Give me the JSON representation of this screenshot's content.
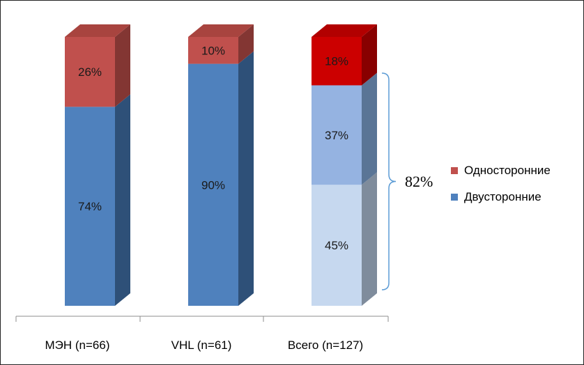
{
  "chart_data": {
    "type": "bar",
    "stacked": true,
    "three_d": true,
    "categories": [
      "МЭН (n=66)",
      "VHL (n=61)",
      "Всего (n=127)"
    ],
    "series": [
      {
        "name": "Двусторонние",
        "values": [
          74,
          90,
          82
        ],
        "color": "#4F81BD"
      },
      {
        "name": "Односторонние",
        "values": [
          26,
          10,
          18
        ],
        "color": "#C0504D"
      }
    ],
    "stacks": [
      [
        {
          "label": "74%",
          "value": 74,
          "color": "#4F81BD",
          "side": "#2E5078",
          "top": "#5B8DC6"
        },
        {
          "label": "26%",
          "value": 26,
          "color": "#C0504D",
          "side": "#833633",
          "top": "#A8443F"
        }
      ],
      [
        {
          "label": "90%",
          "value": 90,
          "color": "#4F81BD",
          "side": "#2E5078",
          "top": "#5B8DC6"
        },
        {
          "label": "10%",
          "value": 10,
          "color": "#C0504D",
          "side": "#833633",
          "top": "#A8443F"
        }
      ],
      [
        {
          "label": "45%",
          "value": 45,
          "color": "#C6D8EF",
          "side": "#7F8C9C",
          "top": "#C6D8EF"
        },
        {
          "label": "37%",
          "value": 37,
          "color": "#95B3E1",
          "side": "#5A7596",
          "top": "#95B3E1"
        },
        {
          "label": "18%",
          "value": 18,
          "color": "#CC0000",
          "side": "#880000",
          "top": "#B20000"
        }
      ]
    ],
    "annotation": {
      "label": "82%",
      "segments_grouped": [
        "45%",
        "37%"
      ]
    },
    "legend": {
      "placement": "right",
      "items": [
        {
          "name": "Односторонние",
          "color": "#C0504D"
        },
        {
          "name": "Двусторонние",
          "color": "#4F81BD"
        }
      ]
    },
    "ylim": [
      0,
      100
    ],
    "grid": false
  }
}
